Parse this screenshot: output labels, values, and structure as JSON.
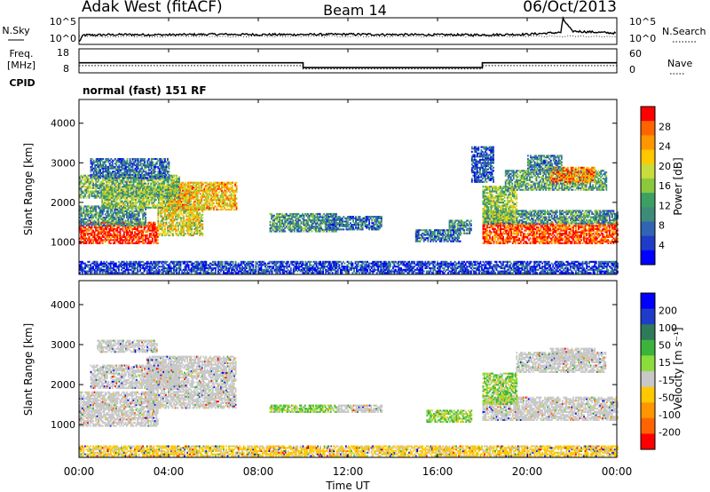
{
  "header": {
    "title": "Adak West (fitACF)",
    "beam": "Beam 14",
    "date": "06/Oct/2013"
  },
  "mode": "normal (fast) 151 RF",
  "chart_data": [
    {
      "type": "line",
      "panel": "noise",
      "ylabel_left": "N.Sky",
      "ylabel_right": "N.Search",
      "left_ticks": [
        "10^5",
        "10^0"
      ],
      "right_ticks": [
        "10^5",
        "10^0"
      ],
      "x_hours": [
        0,
        0.2,
        2,
        4,
        6,
        8,
        10,
        12,
        14,
        16,
        18,
        20,
        21.5,
        21.6,
        22,
        24
      ],
      "sky_level": [
        0.1,
        0.35,
        0.37,
        0.36,
        0.38,
        0.37,
        0.37,
        0.38,
        0.37,
        0.36,
        0.36,
        0.38,
        0.45,
        0.95,
        0.5,
        0.42
      ],
      "search_level": [
        0.3,
        0.3,
        0.3,
        0.3,
        0.3,
        0.3,
        0.3,
        0.3,
        0.3,
        0.3,
        0.3,
        0.3,
        0.3,
        0.3,
        0.3,
        0.3
      ]
    },
    {
      "type": "line",
      "panel": "frequency",
      "ylabel_left": "Freq. [MHz]",
      "ylabel_left_lines": [
        "Freq.",
        "[MHz]"
      ],
      "ylabel_right": "Nave",
      "cpid_label": "CPID",
      "left_ticks": [
        {
          "label": "18",
          "v": 18
        },
        {
          "label": "8",
          "v": 8
        }
      ],
      "right_ticks": [
        {
          "label": "60",
          "v": 60
        },
        {
          "label": "0",
          "v": 0
        }
      ],
      "ylim_left": [
        8,
        18
      ],
      "freq_steps": [
        {
          "x0": 0,
          "x1": 10,
          "mhz": 12.2
        },
        {
          "x0": 10,
          "x1": 18,
          "mhz": 10.2
        },
        {
          "x0": 18,
          "x1": 24,
          "mhz": 12.2
        }
      ],
      "nave_dotted": [
        {
          "x0": 0,
          "x1": 10,
          "mhz": 11.0
        },
        {
          "x0": 10,
          "x1": 18,
          "mhz": 9.6
        },
        {
          "x0": 18,
          "x1": 24,
          "mhz": 11.0
        }
      ]
    },
    {
      "type": "heatmap",
      "panel": "power",
      "ylabel": "Slant Range [km]",
      "yticks": [
        1000,
        2000,
        3000,
        4000
      ],
      "ylim": [
        180,
        4600
      ],
      "xlim": [
        0,
        24
      ],
      "colorbar_label": "Power [dB]",
      "colorbar_ticks": [
        "28",
        "24",
        "20",
        "16",
        "12",
        "8",
        "4"
      ],
      "colorbar_colors": [
        "#ff0000",
        "#ff6400",
        "#ff9600",
        "#ffc800",
        "#c8dc3c",
        "#8cc83c",
        "#3ca064",
        "#3c8c78",
        "#3264b4",
        "#1e3cc8",
        "#0000ff"
      ],
      "regions": [
        {
          "x0": 0.0,
          "x1": 3.5,
          "r0": 950,
          "r1": 1500,
          "level": 0.95
        },
        {
          "x0": 3.5,
          "x1": 5.5,
          "r0": 1150,
          "r1": 1900,
          "level": 0.6
        },
        {
          "x0": 0.0,
          "x1": 3.0,
          "r0": 1400,
          "r1": 1900,
          "level": 0.35
        },
        {
          "x0": 1.0,
          "x1": 5.0,
          "r0": 1850,
          "r1": 2400,
          "level": 0.5
        },
        {
          "x0": 4.0,
          "x1": 7.0,
          "r0": 1800,
          "r1": 2500,
          "level": 0.7
        },
        {
          "x0": 0.0,
          "x1": 4.5,
          "r0": 2100,
          "r1": 2700,
          "level": 0.45
        },
        {
          "x0": 0.5,
          "x1": 4.0,
          "r0": 2600,
          "r1": 3100,
          "level": 0.25
        },
        {
          "x0": 8.5,
          "x1": 11.5,
          "r0": 1250,
          "r1": 1700,
          "level": 0.35
        },
        {
          "x0": 11.0,
          "x1": 13.5,
          "r0": 1300,
          "r1": 1650,
          "level": 0.25
        },
        {
          "x0": 15.0,
          "x1": 17.0,
          "r0": 1000,
          "r1": 1300,
          "level": 0.25
        },
        {
          "x0": 16.5,
          "x1": 17.5,
          "r0": 1200,
          "r1": 1550,
          "level": 0.3
        },
        {
          "x0": 18.0,
          "x1": 24.0,
          "r0": 950,
          "r1": 1500,
          "level": 0.9
        },
        {
          "x0": 18.0,
          "x1": 24.0,
          "r0": 1450,
          "r1": 1800,
          "level": 0.35
        },
        {
          "x0": 18.0,
          "x1": 19.5,
          "r0": 1500,
          "r1": 2400,
          "level": 0.5
        },
        {
          "x0": 19.0,
          "x1": 23.5,
          "r0": 2300,
          "r1": 2800,
          "level": 0.4
        },
        {
          "x0": 21.0,
          "x1": 23.0,
          "r0": 2500,
          "r1": 2900,
          "level": 0.8
        },
        {
          "x0": 20.0,
          "x1": 21.5,
          "r0": 2800,
          "r1": 3200,
          "level": 0.3
        },
        {
          "x0": 17.5,
          "x1": 18.5,
          "r0": 2500,
          "r1": 3400,
          "level": 0.2
        },
        {
          "x0": 0.0,
          "x1": 24.0,
          "r0": 200,
          "r1": 500,
          "level": 0.15
        }
      ]
    },
    {
      "type": "heatmap",
      "panel": "velocity",
      "ylabel": "Slant Range [km]",
      "yticks": [
        1000,
        2000,
        3000,
        4000
      ],
      "ylim": [
        180,
        4600
      ],
      "xlim": [
        0,
        24
      ],
      "colorbar_label": "Velocity [m s⁻¹]",
      "colorbar_ticks": [
        "200",
        "100",
        "50",
        "15",
        "-15",
        "-50",
        "-100",
        "-200"
      ],
      "colorbar_colors": [
        "#0000ff",
        "#1e3cc8",
        "#2f7a5a",
        "#3cb43c",
        "#8cdc3c",
        "#c8c8c8",
        "#ffc800",
        "#ff9600",
        "#ff6400",
        "#ff0000"
      ],
      "regions": [
        {
          "x0": 0.0,
          "x1": 3.5,
          "r0": 950,
          "r1": 1800,
          "kind": "grey"
        },
        {
          "x0": 3.0,
          "x1": 7.0,
          "r0": 1400,
          "r1": 2700,
          "kind": "grey"
        },
        {
          "x0": 0.5,
          "x1": 4.5,
          "r0": 1900,
          "r1": 2500,
          "kind": "grey"
        },
        {
          "x0": 0.8,
          "x1": 3.5,
          "r0": 2800,
          "r1": 3100,
          "kind": "grey"
        },
        {
          "x0": 8.5,
          "x1": 11.5,
          "r0": 1300,
          "r1": 1500,
          "kind": "green"
        },
        {
          "x0": 11.5,
          "x1": 13.5,
          "r0": 1300,
          "r1": 1500,
          "kind": "grey"
        },
        {
          "x0": 15.5,
          "x1": 17.5,
          "r0": 1050,
          "r1": 1350,
          "kind": "green"
        },
        {
          "x0": 18.0,
          "x1": 24.0,
          "r0": 1100,
          "r1": 1700,
          "kind": "grey"
        },
        {
          "x0": 18.0,
          "x1": 19.5,
          "r0": 1500,
          "r1": 2300,
          "kind": "green"
        },
        {
          "x0": 19.5,
          "x1": 23.5,
          "r0": 2300,
          "r1": 2800,
          "kind": "grey"
        },
        {
          "x0": 21.0,
          "x1": 23.0,
          "r0": 2600,
          "r1": 2900,
          "kind": "grey"
        },
        {
          "x0": 0.0,
          "x1": 24.0,
          "r0": 200,
          "r1": 450,
          "kind": "orange"
        }
      ],
      "xticks": [
        "00:00",
        "04:00",
        "08:00",
        "12:00",
        "16:00",
        "20:00",
        "00:00"
      ],
      "xlabel": "Time UT"
    }
  ]
}
